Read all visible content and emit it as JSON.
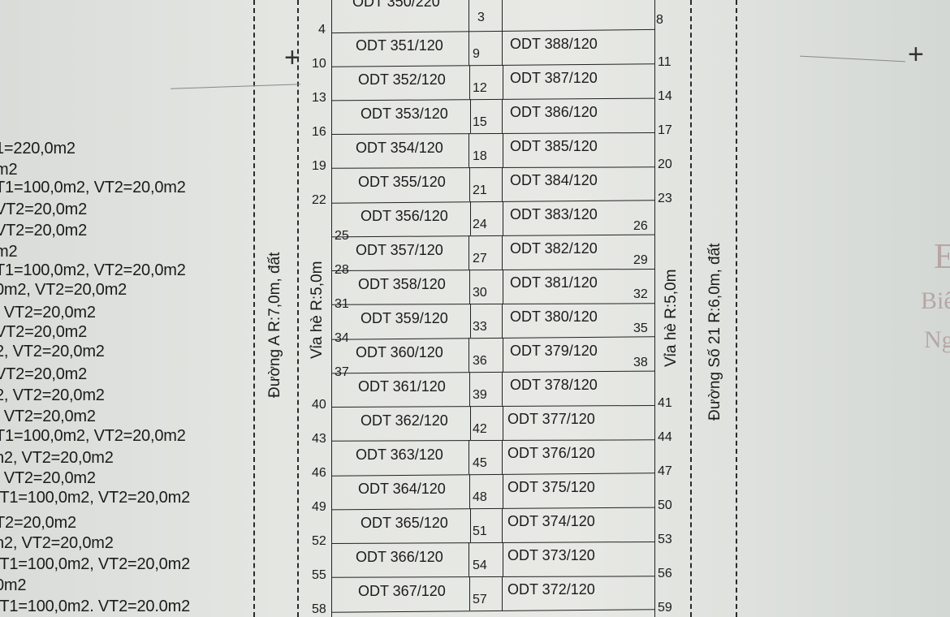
{
  "legend_lines": [
    "1=220,0m2",
    "m2",
    "T1=100,0m2, VT2=20,0m2",
    " VT2=20,0m2",
    "VT2=20,0m2",
    "m2",
    "T1=100,0m2, VT2=20,0m2",
    "0m2, VT2=20,0m2",
    ", VT2=20,0m2",
    "VT2=20,0m2",
    "2, VT2=20,0m2",
    "VT2=20,0m2",
    "2, VT2=20,0m2",
    ", VT2=20,0m2",
    "T1=100,0m2, VT2=20,0m2",
    "n2, VT2=20,0m2",
    ", VT2=20,0m2",
    "/T1=100,0m2, VT2=20,0m2",
    "T2=20,0m2",
    "n2, VT2=20,0m2",
    "/T1=100,0m2, VT2=20,0m2",
    "0m2",
    "/T1=100,0m2. VT2=20.0m2"
  ],
  "top_partial_lot": "ODT 350/220",
  "roads": {
    "left_road": "Đường A R:7,0m, đất",
    "left_sidewalk": "Vỉa hè R:5,0m",
    "right_sidewalk": "Vỉa hè R:5,0m",
    "right_road": "Đường Số 21 R:6,0m, đất"
  },
  "top_numbers": {
    "left": "4",
    "mid": "3",
    "right": "8"
  },
  "rows": [
    {
      "left": "ODT 351/120",
      "right": "ODT 388/120",
      "n_left": "10",
      "n_mid": "9",
      "n_right": "11"
    },
    {
      "left": "ODT 352/120",
      "right": "ODT 387/120",
      "n_left": "13",
      "n_mid": "12",
      "n_right": "14"
    },
    {
      "left": "ODT 353/120",
      "right": "ODT 386/120",
      "n_left": "16",
      "n_mid": "15",
      "n_right": "17"
    },
    {
      "left": "ODT 354/120",
      "right": "ODT 385/120",
      "n_left": "19",
      "n_mid": "18",
      "n_right": "20"
    },
    {
      "left": "ODT 355/120",
      "right": "ODT 384/120",
      "n_left": "22",
      "n_mid": "21",
      "n_right": "23"
    },
    {
      "left": "ODT 356/120",
      "right": "ODT 383/120",
      "n_left": "25",
      "n_mid": "24",
      "n_right": "26"
    },
    {
      "left": "ODT 357/120",
      "right": "ODT 382/120",
      "n_left": "28",
      "n_mid": "27",
      "n_right": "29"
    },
    {
      "left": "ODT 358/120",
      "right": "ODT 381/120",
      "n_left": "31",
      "n_mid": "30",
      "n_right": "32"
    },
    {
      "left": "ODT 359/120",
      "right": "ODT 380/120",
      "n_left": "34",
      "n_mid": "33",
      "n_right": "35"
    },
    {
      "left": "ODT 360/120",
      "right": "ODT 379/120",
      "n_left": "37",
      "n_mid": "36",
      "n_right": "38"
    },
    {
      "left": "ODT 361/120",
      "right": "ODT 378/120",
      "n_left": "40",
      "n_mid": "39",
      "n_right": "41"
    },
    {
      "left": "ODT 362/120",
      "right": "ODT 377/120",
      "n_left": "43",
      "n_mid": "42",
      "n_right": "44"
    },
    {
      "left": "ODT 363/120",
      "right": "ODT 376/120",
      "n_left": "46",
      "n_mid": "45",
      "n_right": "47"
    },
    {
      "left": "ODT 364/120",
      "right": "ODT 375/120",
      "n_left": "49",
      "n_mid": "48",
      "n_right": "50"
    },
    {
      "left": "ODT 365/120",
      "right": "ODT 374/120",
      "n_left": "52",
      "n_mid": "51",
      "n_right": "53"
    },
    {
      "left": "ODT 366/120",
      "right": "ODT 373/120",
      "n_left": "55",
      "n_mid": "54",
      "n_right": "56"
    },
    {
      "left": "ODT 367/120",
      "right": "ODT 372/120",
      "n_left": "58",
      "n_mid": "57",
      "n_right": "59"
    }
  ],
  "stamp_text": [
    "E",
    "Biê",
    "Ng"
  ]
}
